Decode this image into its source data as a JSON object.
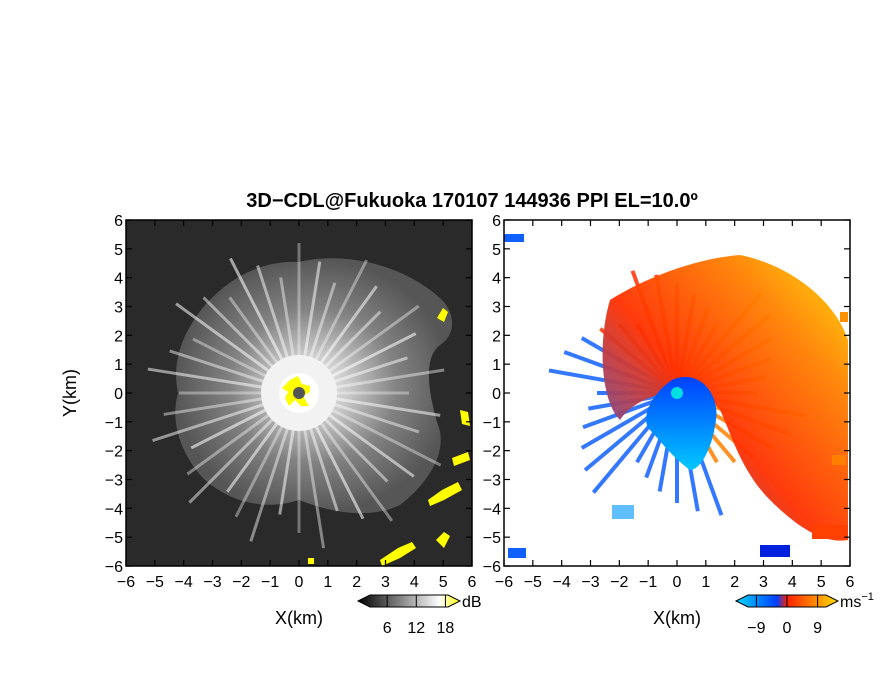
{
  "chart_data": {
    "type": "heatmap",
    "title": "3D−CDL@Fukuoka 170107 144936 PPI EL=10.0º",
    "panels": [
      {
        "name": "reflectivity",
        "xlabel": "X(km)",
        "ylabel": "Y(km)",
        "xlim": [
          -6,
          6
        ],
        "ylim": [
          -6,
          6
        ],
        "xticks": [
          "−6",
          "−5",
          "−4",
          "−3",
          "−2",
          "−1",
          "0",
          "1",
          "2",
          "3",
          "4",
          "5",
          "6"
        ],
        "yticks": [
          "−6",
          "−5",
          "−4",
          "−3",
          "−2",
          "−1",
          "0",
          "1",
          "2",
          "3",
          "4",
          "5",
          "6"
        ],
        "colorbar": {
          "unit": "dB",
          "ticks": [
            "6",
            "12",
            "18"
          ],
          "range": [
            0,
            21
          ],
          "colors": [
            "#000000",
            "#ffffff",
            "#ffff00"
          ]
        }
      },
      {
        "name": "doppler-velocity",
        "xlabel": "X(km)",
        "ylabel": "",
        "xlim": [
          -6,
          6
        ],
        "ylim": [
          -6,
          6
        ],
        "xticks": [
          "−6",
          "−5",
          "−4",
          "−3",
          "−2",
          "−1",
          "0",
          "1",
          "2",
          "3",
          "4",
          "5",
          "6"
        ],
        "colorbar": {
          "unit": "ms",
          "unit_exp": "−1",
          "ticks": [
            "−9",
            "0",
            "9"
          ],
          "range": [
            -15,
            15
          ],
          "colors": [
            "#00d8ff",
            "#0050ff",
            "#ff2000",
            "#ffe000"
          ]
        }
      }
    ],
    "radar_site": [
      0,
      0
    ]
  }
}
